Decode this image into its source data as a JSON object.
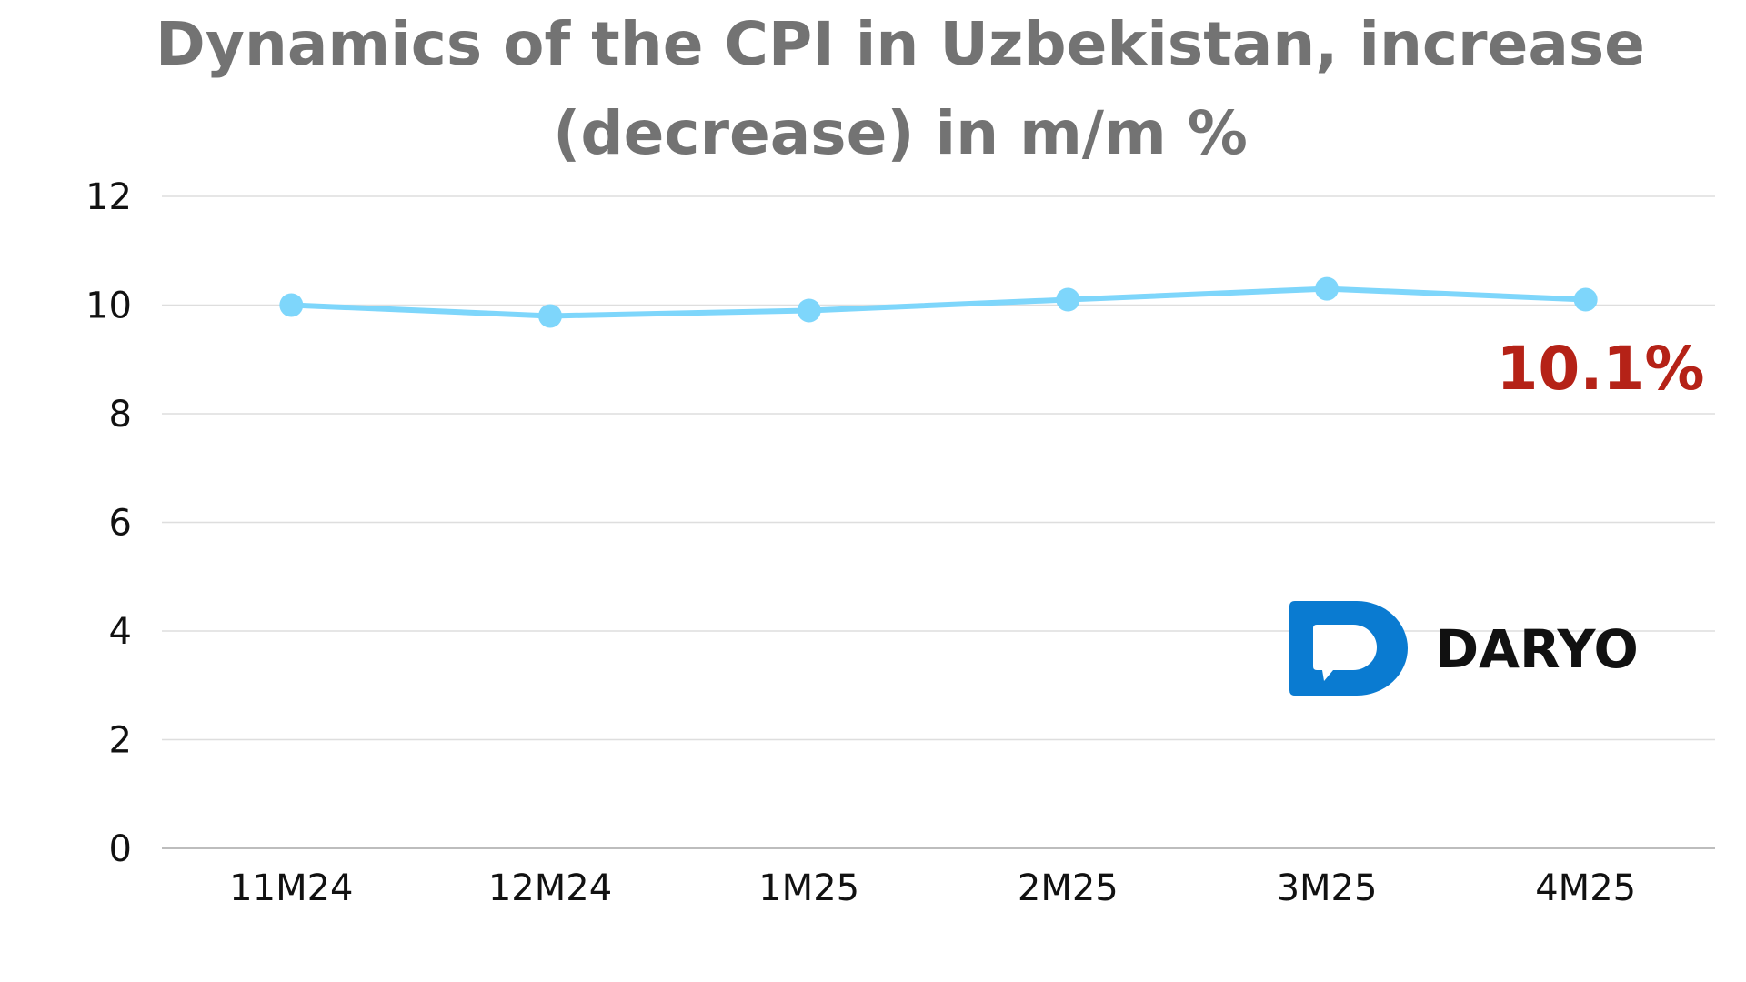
{
  "chart_data": {
    "type": "line",
    "title": "Dynamics of the CPI in Uzbekistan, increase (decrease) in m/m %",
    "xlabel": "",
    "ylabel": "",
    "categories": [
      "11M24",
      "12M24",
      "1M25",
      "2M25",
      "3M25",
      "4M25"
    ],
    "series": [
      {
        "values": [
          10.0,
          9.8,
          9.9,
          10.1,
          10.3,
          10.1
        ]
      }
    ],
    "ylim": [
      0,
      12
    ],
    "yticks": [
      0,
      2,
      4,
      6,
      8,
      10,
      12
    ],
    "grid": true,
    "legend": "none",
    "annotation": {
      "text": "10.1%",
      "category": "4M25",
      "color": "#b52217"
    },
    "line_color": "#7ed6fb"
  },
  "logo": {
    "text": "DARYO",
    "color": "#0a7bd1"
  }
}
